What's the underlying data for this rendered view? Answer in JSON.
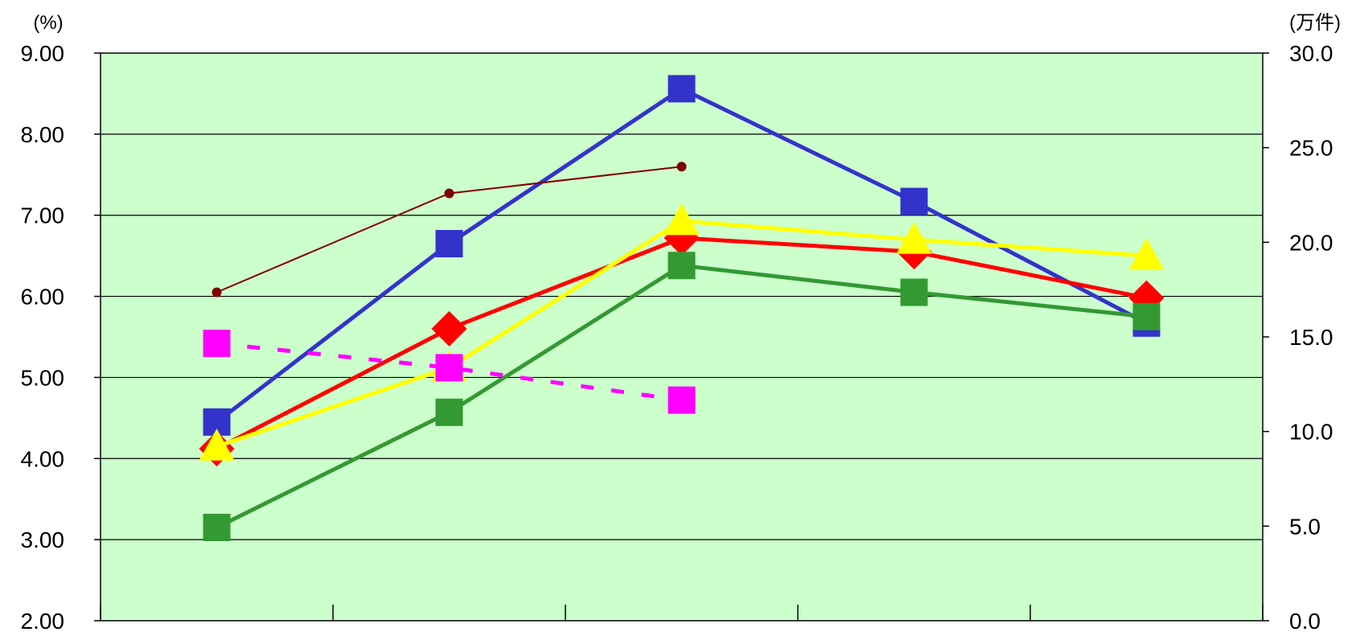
{
  "chart_data": {
    "type": "line",
    "title": "",
    "xlabel": "",
    "ylabel": "",
    "y_unit_left": "(%)",
    "y_unit_right": "(万件)",
    "ylim_left": [
      2,
      9
    ],
    "ylim_right": [
      0,
      30
    ],
    "y_ticks_left": [
      "2.00",
      "3.00",
      "4.00",
      "5.00",
      "6.00",
      "7.00",
      "8.00",
      "9.00"
    ],
    "y_ticks_right": [
      "0.0",
      "5.0",
      "10.0",
      "15.0",
      "20.0",
      "25.0",
      "30.0"
    ],
    "categories": [
      "",
      "",
      "",
      "",
      ""
    ],
    "grid": true,
    "background_color": "#ccffcc",
    "series": [
      {
        "axis": "left",
        "color": "#3333cc",
        "marker": "square",
        "line": "solid",
        "width": 5,
        "values": [
          4.45,
          6.65,
          8.56,
          7.17,
          5.67
        ]
      },
      {
        "axis": "left",
        "color": "#ff0000",
        "marker": "diamond",
        "line": "solid",
        "width": 5,
        "values": [
          4.12,
          5.6,
          6.72,
          6.55,
          5.98
        ]
      },
      {
        "axis": "left",
        "color": "#ffff00",
        "marker": "triangle",
        "line": "solid",
        "width": 5,
        "values": [
          4.15,
          5.12,
          6.93,
          6.7,
          6.5
        ]
      },
      {
        "axis": "left",
        "color": "#339933",
        "marker": "square",
        "line": "solid",
        "width": 5,
        "values": [
          3.15,
          4.57,
          6.38,
          6.05,
          5.75
        ]
      },
      {
        "axis": "left",
        "color": "#800000",
        "marker": "circle",
        "line": "solid",
        "width": 2,
        "values": [
          6.05,
          7.27,
          7.6,
          null,
          null
        ]
      },
      {
        "axis": "left",
        "color": "#ff00ff",
        "marker": "square",
        "line": "dashed",
        "width": 5,
        "values": [
          5.42,
          5.12,
          4.72,
          null,
          null
        ]
      }
    ]
  }
}
